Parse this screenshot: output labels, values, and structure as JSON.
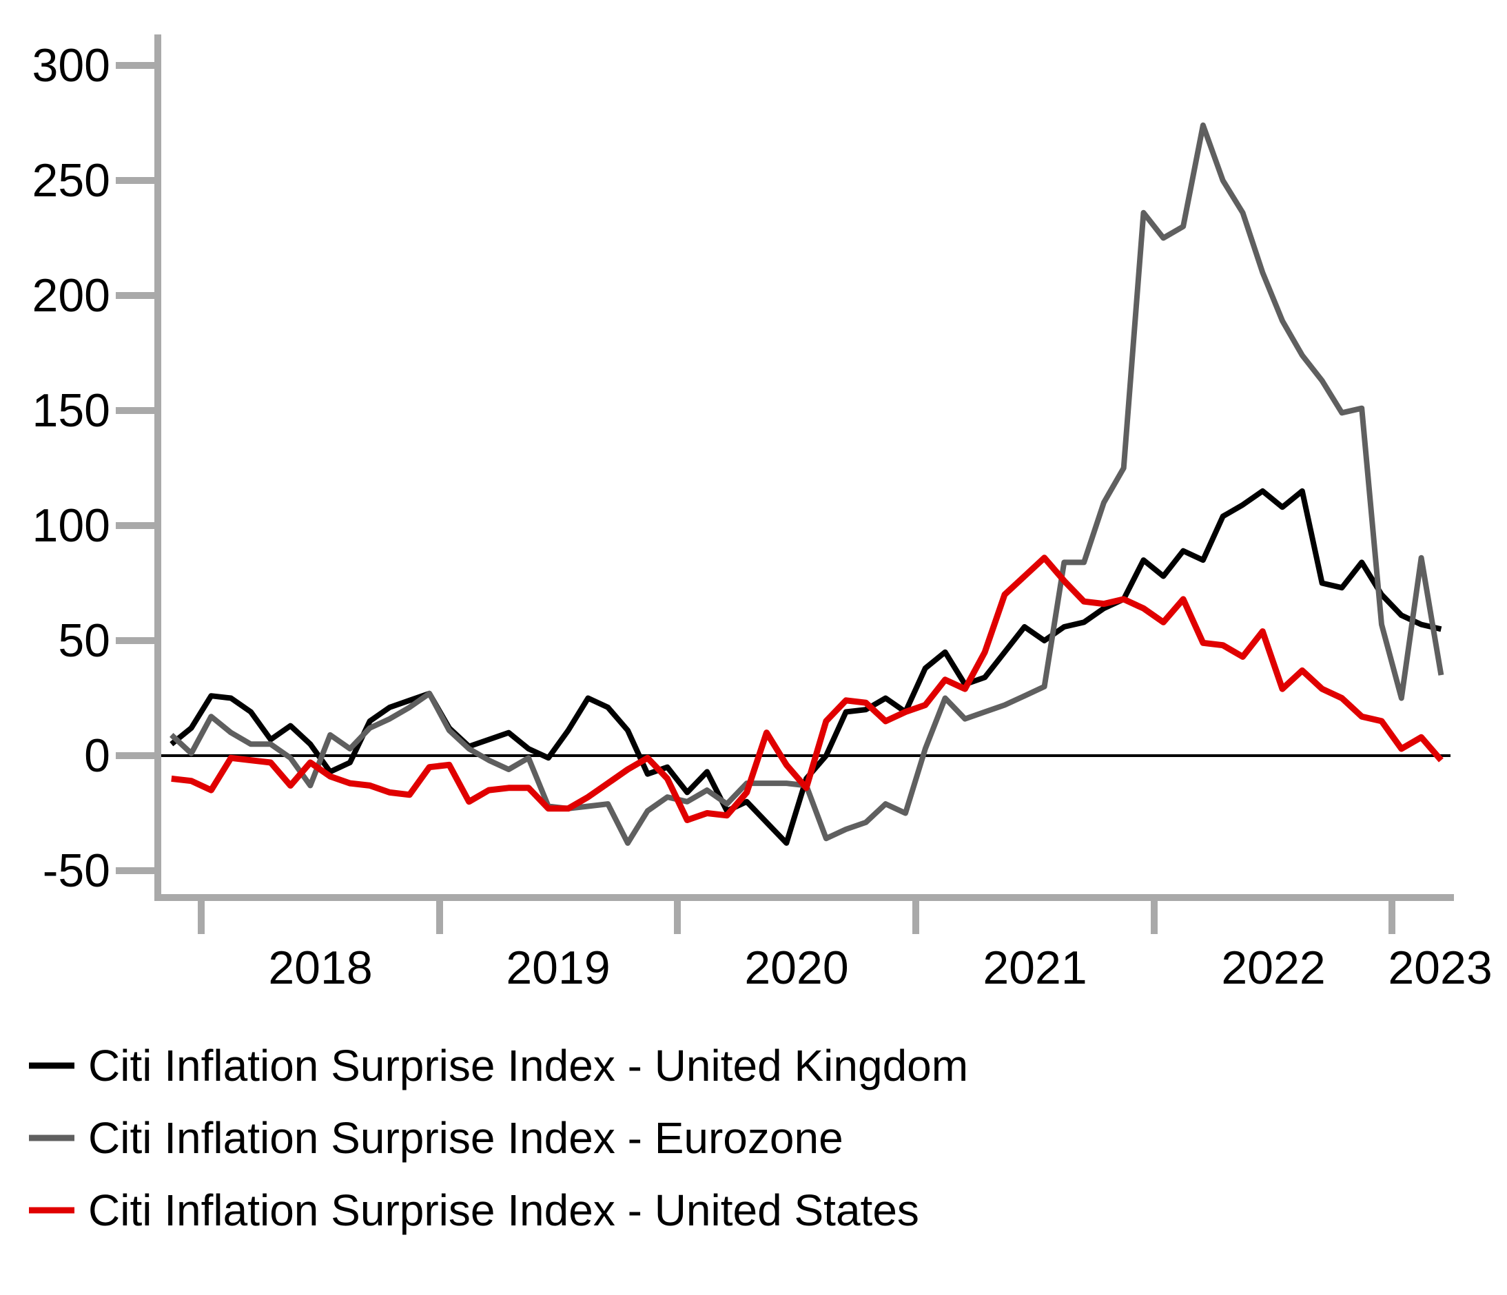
{
  "chart_data": {
    "type": "line",
    "title": "",
    "xlabel": "",
    "ylabel": "",
    "x_unit": "month",
    "x_start": "2017-11",
    "x_end": "2023-03",
    "x_tick_labels": [
      "2018",
      "2019",
      "2020",
      "2021",
      "2022",
      "2023"
    ],
    "y_tick_labels": [
      "300",
      "250",
      "200",
      "150",
      "100",
      "50",
      "0",
      "-50"
    ],
    "ylim": [
      -75,
      313
    ],
    "grid": false,
    "zero_line": true,
    "legend_position": "below-left",
    "axis_color": "#a9a9a9",
    "zero_line_color": "#000000",
    "series": [
      {
        "name": "Citi Inflation Surprise Index - United Kingdom",
        "color": "#000000",
        "stroke_width": 8,
        "values": [
          5,
          12,
          26,
          25,
          19,
          7,
          13,
          5,
          -7,
          -3,
          15,
          21,
          24,
          27,
          12,
          4,
          7,
          10,
          3,
          -1,
          11,
          25,
          21,
          11,
          -8,
          -5,
          -16,
          -7,
          -24,
          -20,
          -29,
          -38,
          -10,
          0,
          19,
          20,
          25,
          19,
          38,
          45,
          31,
          34,
          45,
          56,
          50,
          56,
          58,
          64,
          68,
          85,
          78,
          89,
          85,
          104,
          109,
          115,
          108,
          115,
          75,
          73,
          84,
          70,
          61,
          57,
          55
        ]
      },
      {
        "name": "Citi Inflation Surprise Index - Eurozone",
        "color": "#5f5f5f",
        "stroke_width": 8,
        "values": [
          9,
          1,
          17,
          10,
          5,
          5,
          -1,
          -13,
          9,
          3,
          12,
          16,
          21,
          27,
          11,
          3,
          -2,
          -6,
          -1,
          -22,
          -23,
          -22,
          -21,
          -38,
          -24,
          -18,
          -20,
          -15,
          -21,
          -12,
          -12,
          -12,
          -13,
          -36,
          -32,
          -29,
          -21,
          -25,
          3,
          25,
          16,
          19,
          22,
          26,
          30,
          84,
          84,
          110,
          125,
          236,
          225,
          230,
          274,
          250,
          236,
          210,
          189,
          174,
          163,
          149,
          151,
          57,
          25,
          86,
          35
        ]
      },
      {
        "name": "Citi Inflation Surprise Index - United States",
        "color": "#e00000",
        "stroke_width": 9,
        "values": [
          -10,
          -11,
          -15,
          -1,
          -2,
          -3,
          -13,
          -3,
          -9,
          -12,
          -13,
          -16,
          -17,
          -5,
          -4,
          -20,
          -15,
          -14,
          -14,
          -23,
          -23,
          -18,
          -12,
          -6,
          -1,
          -10,
          -28,
          -25,
          -26,
          -16,
          10,
          -4,
          -14,
          15,
          24,
          23,
          15,
          19,
          22,
          33,
          29,
          45,
          70,
          78,
          86,
          76,
          67,
          66,
          68,
          64,
          58,
          68,
          49,
          48,
          43,
          54,
          29,
          37,
          29,
          25,
          17,
          15,
          3,
          8,
          -2
        ]
      }
    ]
  }
}
